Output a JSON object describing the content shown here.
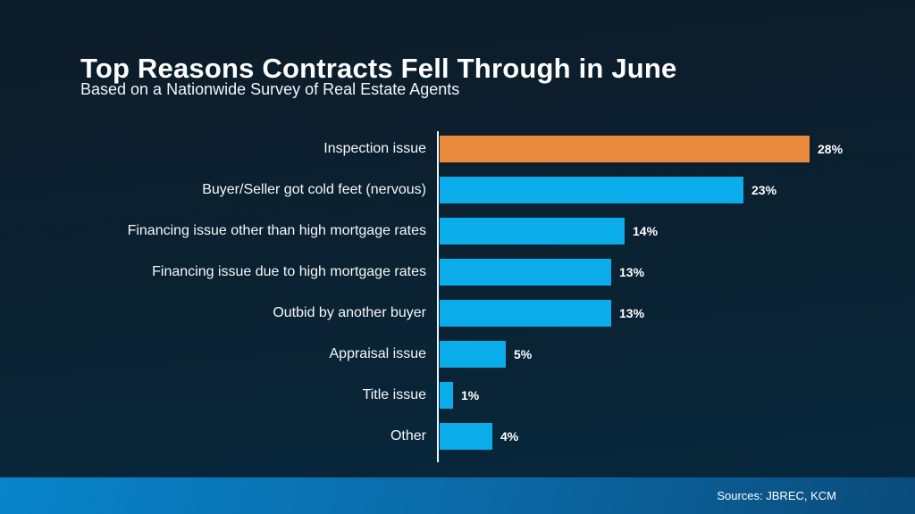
{
  "slide": {
    "title": "Top Reasons Contracts Fell Through in June",
    "subtitle": "Based on a Nationwide Survey of Real Estate Agents",
    "footer_sources": "Sources: JBREC, KCM"
  },
  "colors": {
    "background_top": "#0C1B28",
    "background_bottom": "#06293E",
    "bar_highlight": "#E98A3C",
    "bar_default": "#0AACE9",
    "axis": "#F2F6F8",
    "footer_gradient_left": "#0884CA",
    "footer_gradient_right": "#0A4C7C",
    "text": "#FFFFFF"
  },
  "chart_data": {
    "type": "bar",
    "orientation": "horizontal",
    "title": "Top Reasons Contracts Fell Through in June",
    "subtitle": "Based on a Nationwide Survey of Real Estate Agents",
    "categories": [
      "Inspection issue",
      "Buyer/Seller got cold feet (nervous)",
      "Financing issue other than high mortgage rates",
      "Financing issue due to high mortgage rates",
      "Outbid by another buyer",
      "Appraisal issue",
      "Title issue",
      "Other"
    ],
    "values": [
      28,
      23,
      14,
      13,
      13,
      5,
      1,
      4
    ],
    "value_labels": [
      "28%",
      "23%",
      "14%",
      "13%",
      "13%",
      "5%",
      "1%",
      "4%"
    ],
    "unit": "%",
    "highlight_index": 0,
    "xlim": [
      0,
      30
    ],
    "grid": false,
    "legend": false,
    "value_labels_position": "outside-end"
  }
}
